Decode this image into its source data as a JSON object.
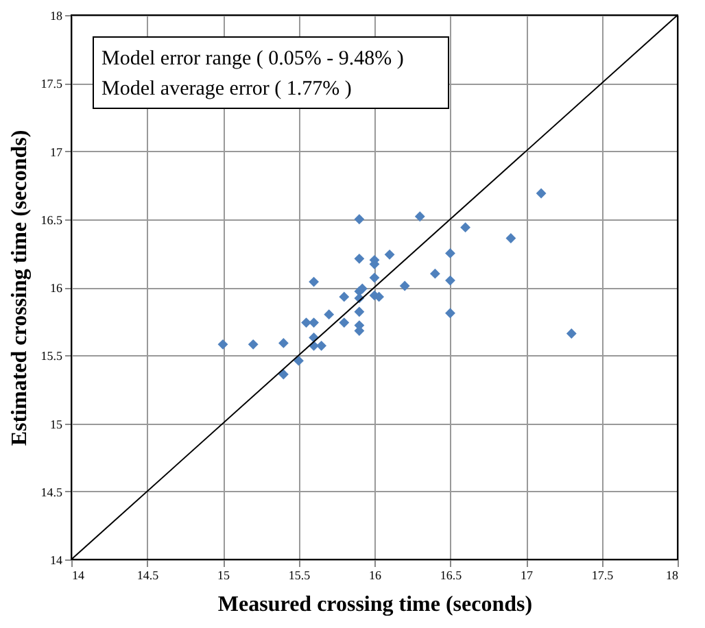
{
  "chart_data": {
    "type": "scatter",
    "xlabel": "Measured crossing time (seconds)",
    "ylabel": "Estimated crossing time  (seconds)",
    "xlim": [
      14,
      18
    ],
    "ylim": [
      14,
      18
    ],
    "xticks": [
      14,
      14.5,
      15,
      15.5,
      16,
      16.5,
      17,
      17.5,
      18
    ],
    "yticks": [
      14,
      14.5,
      15,
      15.5,
      16,
      16.5,
      17,
      17.5,
      18
    ],
    "grid": true,
    "annotations": [
      "Model error range ( 0.05% - 9.48% )",
      "Model average error ( 1.77% )"
    ],
    "series": [
      {
        "color": "#4f81bd",
        "marker": "diamond",
        "x": [
          15.0,
          15.2,
          15.4,
          15.4,
          15.5,
          15.55,
          15.6,
          15.6,
          15.6,
          15.6,
          15.65,
          15.7,
          15.8,
          15.8,
          15.9,
          15.9,
          15.92,
          15.9,
          15.9,
          15.9,
          15.9,
          15.9,
          16.0,
          16.0,
          16.0,
          16.0,
          16.03,
          16.1,
          16.2,
          16.3,
          16.4,
          16.5,
          16.5,
          16.5,
          16.6,
          16.9,
          17.1,
          17.3
        ],
        "values": [
          15.58,
          15.58,
          15.59,
          15.36,
          15.46,
          15.74,
          15.74,
          16.04,
          15.63,
          15.57,
          15.57,
          15.8,
          15.93,
          15.74,
          16.5,
          16.21,
          15.99,
          15.92,
          15.82,
          15.72,
          15.68,
          15.97,
          16.17,
          16.2,
          15.94,
          16.07,
          15.93,
          16.24,
          16.01,
          16.52,
          16.1,
          16.25,
          16.05,
          15.81,
          16.44,
          16.36,
          16.69,
          15.66
        ]
      },
      {
        "type": "line",
        "color": "#000000",
        "marker": "none",
        "line_style": "solid",
        "x": [
          14,
          18
        ],
        "values": [
          14,
          18
        ]
      }
    ]
  }
}
